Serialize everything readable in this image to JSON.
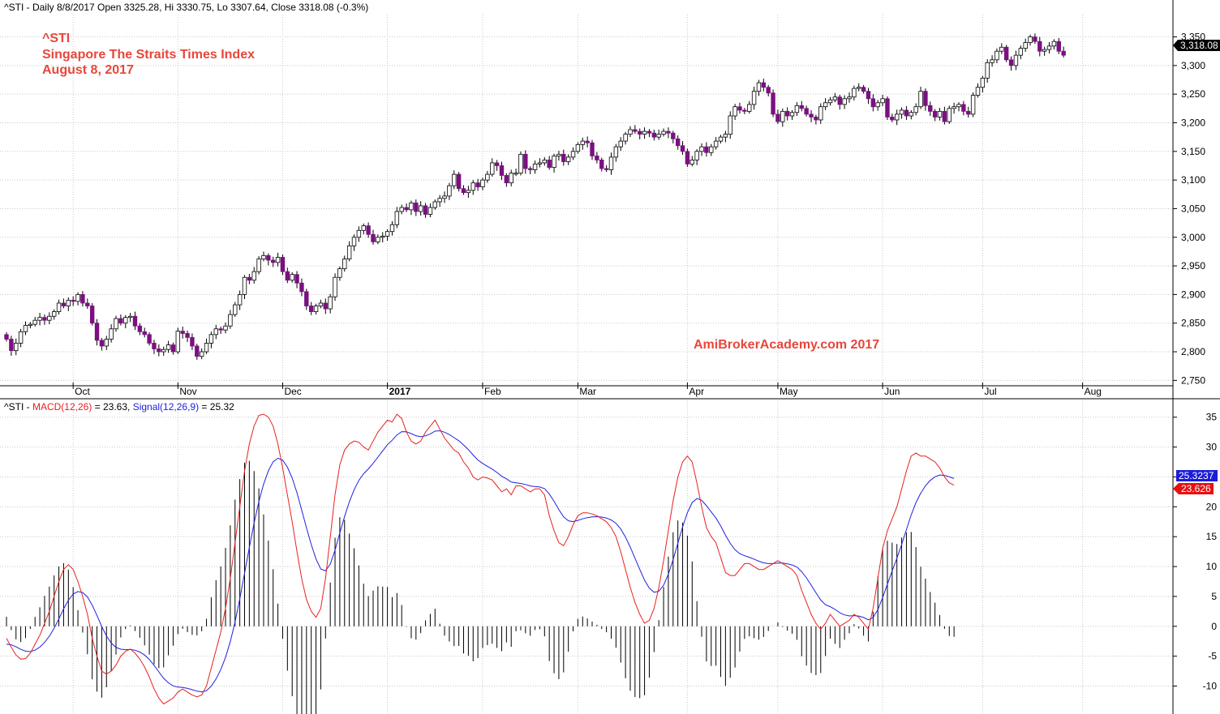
{
  "header": {
    "price": "^STI - Daily 8/8/2017 Open 3325.28, Hi 3330.75, Lo 3307.64, Close 3318.08 (-0.3%)",
    "macd_prefix": "^STI - ",
    "macd_label": "MACD(12,26)",
    "macd_value": " = 23.63, ",
    "signal_label": "Signal(12,26,9)",
    "signal_value": " = 25.32"
  },
  "title_lines": [
    "^STI",
    "Singapore The Straits Times Index",
    "August 8, 2017"
  ],
  "watermark": "AmiBrokerAcademy.com  2017",
  "price_tag": "3,318.08",
  "signal_tag": "25.3237",
  "macd_tag": "23.626",
  "colors": {
    "candle_down": "#7b1080",
    "candle_up_fill": "#ffffff",
    "candle_outline": "#000000",
    "macd_line": "#e82020",
    "signal_line": "#2020e0",
    "histogram": "#000000",
    "title_text": "#e8463a",
    "grid": "#c8c8c8"
  },
  "chart_data": [
    {
      "type": "candlestick",
      "title": "^STI - Daily",
      "months": [
        "Oct",
        "Nov",
        "Dec",
        "2017",
        "Feb",
        "Mar",
        "Apr",
        "May",
        "Jun",
        "Jul",
        "Aug"
      ],
      "month_bold": [
        false,
        false,
        false,
        true,
        false,
        false,
        false,
        false,
        false,
        false,
        false
      ],
      "month_positions": [
        14,
        36,
        58,
        80,
        100,
        120,
        143,
        162,
        184,
        205,
        226
      ],
      "y_ticks": [
        2750,
        2800,
        2850,
        2900,
        2950,
        3000,
        3050,
        3100,
        3150,
        3200,
        3250,
        3300,
        3350
      ],
      "ylim": [
        2742,
        3372
      ],
      "grid": true,
      "last_close": 3318.08,
      "closes": [
        2822,
        2802,
        2815,
        2835,
        2846,
        2848,
        2855,
        2860,
        2855,
        2862,
        2870,
        2885,
        2880,
        2890,
        2888,
        2900,
        2885,
        2880,
        2850,
        2820,
        2810,
        2822,
        2840,
        2858,
        2850,
        2860,
        2862,
        2845,
        2835,
        2830,
        2815,
        2805,
        2800,
        2804,
        2812,
        2800,
        2836,
        2832,
        2825,
        2810,
        2792,
        2800,
        2815,
        2830,
        2840,
        2838,
        2845,
        2865,
        2882,
        2900,
        2930,
        2925,
        2940,
        2962,
        2968,
        2960,
        2956,
        2965,
        2940,
        2925,
        2935,
        2920,
        2905,
        2880,
        2870,
        2880,
        2885,
        2875,
        2896,
        2930,
        2945,
        2962,
        2985,
        3000,
        3012,
        3020,
        3005,
        2992,
        3000,
        3002,
        3010,
        3022,
        3045,
        3052,
        3048,
        3060,
        3045,
        3055,
        3040,
        3052,
        3062,
        3068,
        3072,
        3090,
        3110,
        3085,
        3078,
        3082,
        3095,
        3088,
        3100,
        3110,
        3130,
        3125,
        3108,
        3095,
        3112,
        3112,
        3145,
        3120,
        3118,
        3128,
        3130,
        3135,
        3122,
        3142,
        3145,
        3132,
        3140,
        3150,
        3162,
        3168,
        3165,
        3142,
        3135,
        3120,
        3118,
        3140,
        3158,
        3168,
        3180,
        3188,
        3185,
        3180,
        3185,
        3182,
        3175,
        3180,
        3185,
        3182,
        3172,
        3160,
        3150,
        3128,
        3135,
        3150,
        3158,
        3148,
        3158,
        3168,
        3175,
        3180,
        3212,
        3228,
        3222,
        3220,
        3232,
        3255,
        3270,
        3262,
        3252,
        3215,
        3202,
        3220,
        3212,
        3218,
        3230,
        3225,
        3215,
        3210,
        3205,
        3228,
        3235,
        3240,
        3245,
        3232,
        3242,
        3245,
        3260,
        3262,
        3255,
        3242,
        3228,
        3235,
        3242,
        3210,
        3205,
        3215,
        3222,
        3212,
        3218,
        3228,
        3255,
        3230,
        3220,
        3210,
        3220,
        3202,
        3225,
        3228,
        3232,
        3220,
        3215,
        3248,
        3262,
        3278,
        3305,
        3310,
        3325,
        3332,
        3310,
        3300,
        3318,
        3330,
        3340,
        3350,
        3342,
        3325,
        3328,
        3334,
        3342,
        3325,
        3318
      ]
    },
    {
      "type": "macd",
      "title": "MACD(12,26) / Signal(12,26,9)",
      "y_ticks": [
        -10,
        -5,
        0,
        5,
        10,
        15,
        20,
        25,
        30,
        35
      ],
      "ylim": [
        -14,
        37
      ],
      "grid": true,
      "macd": [
        -2,
        -3.5,
        -4.8,
        -5.5,
        -5.4,
        -4.5,
        -3,
        -1.5,
        0.5,
        2.5,
        5,
        7.5,
        9.5,
        10.3,
        9.5,
        7.5,
        5,
        2,
        -2,
        -5,
        -7.5,
        -8,
        -7.5,
        -6.5,
        -5,
        -4.2,
        -3.8,
        -4.5,
        -5.5,
        -6.8,
        -8.5,
        -10.5,
        -12,
        -13,
        -12.5,
        -12,
        -11,
        -10.5,
        -11,
        -11.5,
        -11.8,
        -11.5,
        -10,
        -7,
        -4,
        -1,
        3,
        8,
        14,
        20,
        26,
        30.5,
        33.5,
        35.3,
        35.5,
        35,
        33.5,
        30.5,
        26.5,
        22,
        17.5,
        12.5,
        8,
        4.5,
        2.5,
        1.5,
        3,
        8,
        15,
        22,
        27,
        29.5,
        30.5,
        31,
        30.8,
        30,
        29.5,
        31,
        32.5,
        33.5,
        34.5,
        34.2,
        35.5,
        34.8,
        32.5,
        31,
        30.5,
        31,
        32.5,
        33.5,
        34.5,
        33,
        31.5,
        30.5,
        29.5,
        29,
        27.5,
        26.5,
        25,
        24.5,
        25,
        24.8,
        24.5,
        23.5,
        22.5,
        23,
        22,
        23.5,
        23.5,
        23,
        22.5,
        23,
        23,
        22,
        18.5,
        16,
        14,
        13.5,
        15,
        17,
        18.5,
        19,
        19,
        18.8,
        18.5,
        18,
        17.5,
        16.5,
        15,
        12.5,
        9.5,
        6.5,
        4,
        2,
        0.5,
        1,
        3,
        6.5,
        11,
        16,
        21,
        25,
        27.5,
        28.5,
        27.5,
        24,
        20,
        16.5,
        15,
        14,
        11.5,
        9,
        8.5,
        8.5,
        9.5,
        10.5,
        10.5,
        10,
        9.5,
        9.5,
        10,
        10.5,
        11,
        10.5,
        10,
        9.5,
        8.5,
        6,
        4,
        2,
        0.5,
        -0.5,
        0.5,
        2,
        1,
        0,
        0.5,
        1,
        2,
        1.5,
        0.5,
        -0.5,
        3,
        8,
        13,
        16,
        18,
        20,
        23,
        26,
        28.5,
        29,
        28.5,
        28.5,
        28,
        27.5,
        26.5,
        25,
        24,
        23.63
      ]
    }
  ]
}
